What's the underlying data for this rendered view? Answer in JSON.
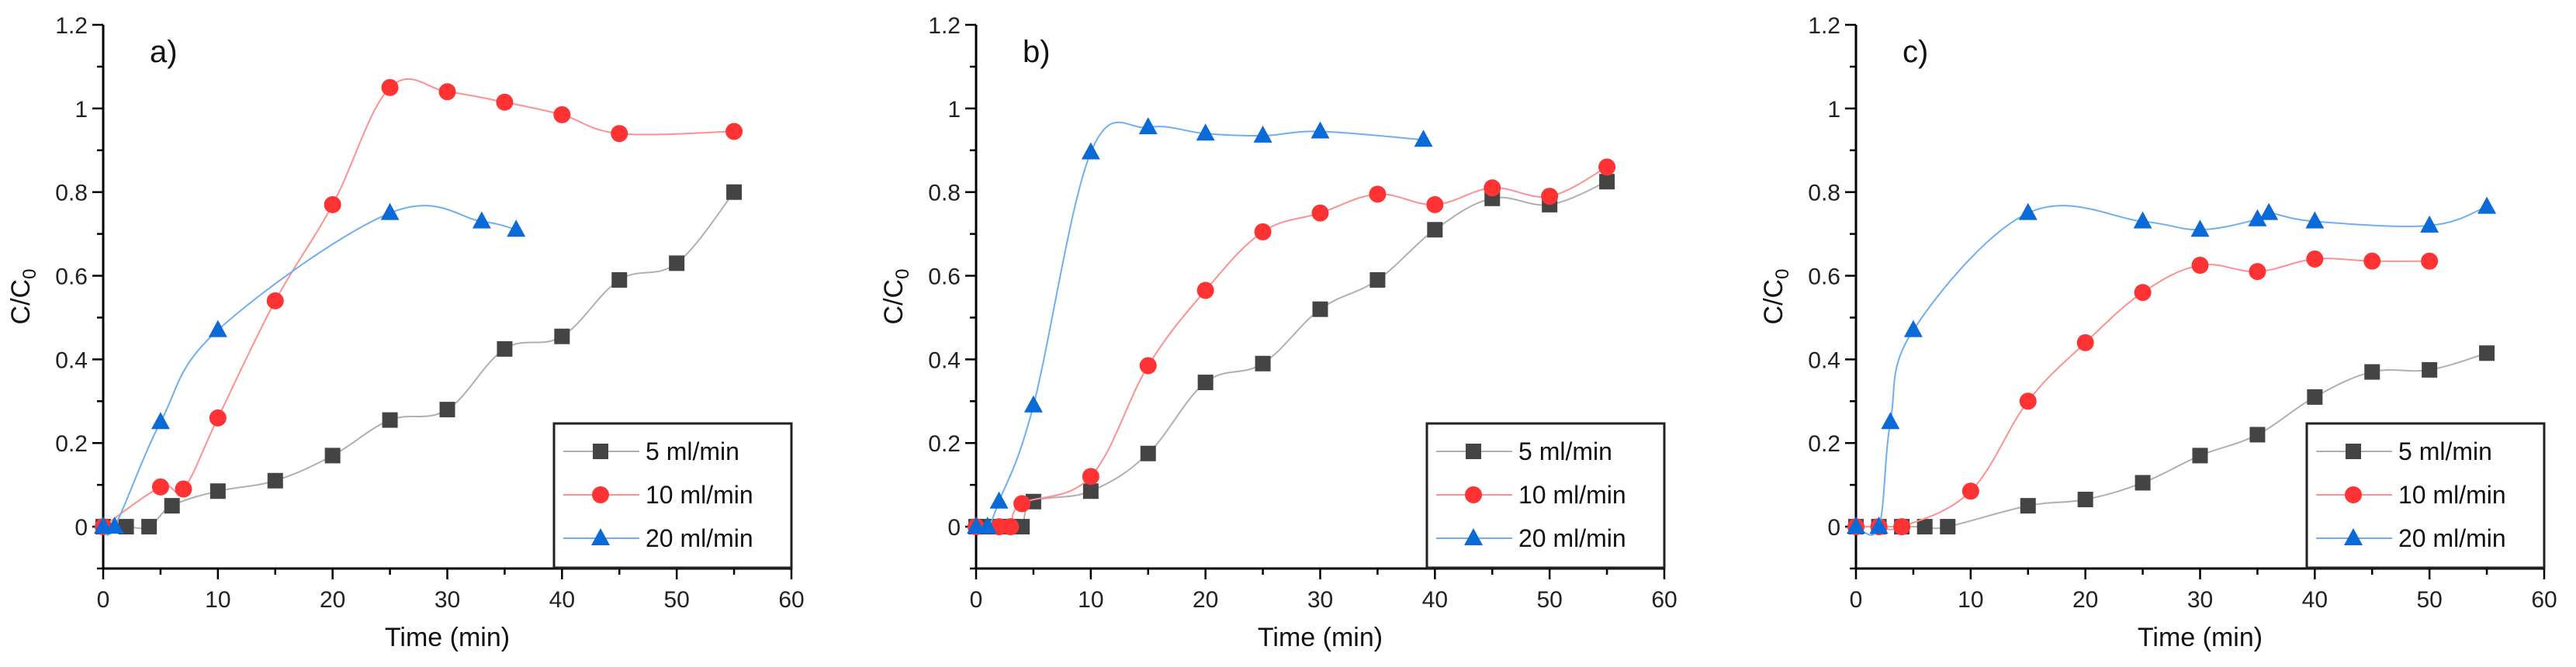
{
  "chart_data": [
    {
      "type": "line",
      "panel_label": "a)",
      "xlabel": "Time (min)",
      "ylabel": "C/C",
      "ylabel_sub": "0",
      "xlim": [
        0,
        60
      ],
      "ylim": [
        -0.1,
        1.2
      ],
      "xticks": [
        "0",
        "10",
        "20",
        "30",
        "40",
        "50",
        "60"
      ],
      "yticks": [
        "0",
        "0.2",
        "0.4",
        "0.6",
        "0.8",
        "1",
        "1.2"
      ],
      "legend_position": "bottom-right",
      "series": [
        {
          "name": "5 ml/min",
          "marker": "square",
          "color": "#444444",
          "line_color": "#b0b0b0",
          "x": [
            0,
            2,
            4,
            6,
            10,
            15,
            20,
            25,
            30,
            35,
            40,
            45,
            50,
            55
          ],
          "y": [
            0,
            0,
            0,
            0.05,
            0.085,
            0.11,
            0.17,
            0.255,
            0.28,
            0.425,
            0.455,
            0.59,
            0.63,
            0.8
          ]
        },
        {
          "name": "10 ml/min",
          "marker": "circle",
          "color": "#ff3333",
          "line_color": "#ff9090",
          "x": [
            0,
            5,
            7,
            10,
            15,
            20,
            25,
            30,
            35,
            40,
            45,
            55
          ],
          "y": [
            0,
            0.095,
            0.09,
            0.26,
            0.54,
            0.77,
            1.05,
            1.04,
            1.015,
            0.985,
            0.94,
            0.945
          ]
        },
        {
          "name": "20 ml/min",
          "marker": "triangle",
          "color": "#0a6ad8",
          "line_color": "#70aef0",
          "x": [
            0,
            1,
            5,
            10,
            25,
            33,
            36
          ],
          "y": [
            0,
            0,
            0.25,
            0.47,
            0.75,
            0.73,
            0.71
          ]
        }
      ]
    },
    {
      "type": "line",
      "panel_label": "b)",
      "xlabel": "Time (min)",
      "ylabel": "C/C",
      "ylabel_sub": "0",
      "xlim": [
        0,
        60
      ],
      "ylim": [
        -0.1,
        1.2
      ],
      "xticks": [
        "0",
        "10",
        "20",
        "30",
        "40",
        "50",
        "60"
      ],
      "yticks": [
        "0",
        "0.2",
        "0.4",
        "0.6",
        "0.8",
        "1",
        "1.2"
      ],
      "legend_position": "bottom-right",
      "series": [
        {
          "name": "5 ml/min",
          "marker": "square",
          "color": "#444444",
          "line_color": "#b0b0b0",
          "x": [
            0,
            1,
            2,
            3,
            4,
            5,
            10,
            15,
            20,
            25,
            30,
            35,
            40,
            45,
            50,
            55
          ],
          "y": [
            0,
            0,
            0,
            0,
            0,
            0.06,
            0.085,
            0.175,
            0.345,
            0.39,
            0.52,
            0.59,
            0.71,
            0.785,
            0.77,
            0.825
          ]
        },
        {
          "name": "10 ml/min",
          "marker": "circle",
          "color": "#ff3333",
          "line_color": "#ff9090",
          "x": [
            0,
            2,
            3,
            4,
            10,
            15,
            20,
            25,
            30,
            35,
            40,
            45,
            50,
            55
          ],
          "y": [
            0,
            0,
            0,
            0.055,
            0.12,
            0.385,
            0.565,
            0.705,
            0.75,
            0.795,
            0.77,
            0.81,
            0.79,
            0.86
          ]
        },
        {
          "name": "20 ml/min",
          "marker": "triangle",
          "color": "#0a6ad8",
          "line_color": "#70aef0",
          "x": [
            0,
            1,
            2,
            5,
            10,
            15,
            20,
            25,
            30,
            39
          ],
          "y": [
            0,
            0,
            0.06,
            0.29,
            0.895,
            0.955,
            0.94,
            0.935,
            0.945,
            0.925
          ]
        }
      ]
    },
    {
      "type": "line",
      "panel_label": "c)",
      "xlabel": "Time (min)",
      "ylabel": "C/C",
      "ylabel_sub": "0",
      "xlim": [
        0,
        60
      ],
      "ylim": [
        -0.1,
        1.2
      ],
      "xticks": [
        "0",
        "10",
        "20",
        "30",
        "40",
        "50",
        "60"
      ],
      "yticks": [
        "0",
        "0.2",
        "0.4",
        "0.6",
        "0.8",
        "1",
        "1.2"
      ],
      "legend_position": "bottom-right",
      "series": [
        {
          "name": "5 ml/min",
          "marker": "square",
          "color": "#444444",
          "line_color": "#b0b0b0",
          "x": [
            0,
            2,
            4,
            6,
            8,
            15,
            20,
            25,
            30,
            35,
            40,
            45,
            50,
            55
          ],
          "y": [
            0,
            0,
            0,
            0,
            0,
            0.05,
            0.065,
            0.105,
            0.17,
            0.22,
            0.31,
            0.37,
            0.375,
            0.415
          ]
        },
        {
          "name": "10 ml/min",
          "marker": "circle",
          "color": "#ff3333",
          "line_color": "#ff9090",
          "x": [
            0,
            2,
            4,
            10,
            15,
            20,
            25,
            30,
            35,
            40,
            45,
            50
          ],
          "y": [
            0,
            0,
            0,
            0.085,
            0.3,
            0.44,
            0.56,
            0.625,
            0.61,
            0.64,
            0.635,
            0.635
          ]
        },
        {
          "name": "20 ml/min",
          "marker": "triangle",
          "color": "#0a6ad8",
          "line_color": "#70aef0",
          "x": [
            0,
            2,
            3,
            5,
            15,
            25,
            30,
            35,
            36,
            40,
            50,
            55
          ],
          "y": [
            0,
            0,
            0.25,
            0.47,
            0.75,
            0.73,
            0.71,
            0.735,
            0.75,
            0.73,
            0.72,
            0.765
          ]
        }
      ]
    }
  ]
}
